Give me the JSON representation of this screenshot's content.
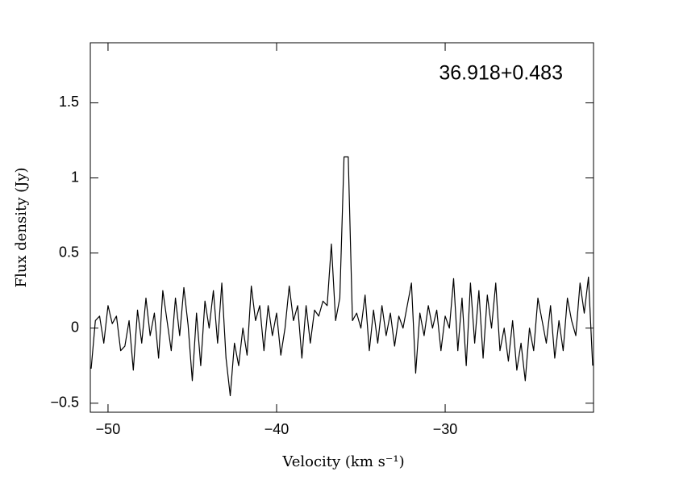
{
  "chart_data": {
    "type": "line",
    "annotation": "36.918+0.483",
    "x_label": "Velocity (km s⁻¹)",
    "y_label": "Flux density (Jy)",
    "xlim": [
      -51.05,
      -21.2
    ],
    "ylim": [
      -0.56,
      1.9
    ],
    "xticks": [
      {
        "value": -50,
        "label": "−50"
      },
      {
        "value": -40,
        "label": "−40"
      },
      {
        "value": -30,
        "label": "−30"
      }
    ],
    "yticks": [
      {
        "value": -0.5,
        "label": "−0.5"
      },
      0,
      0.5,
      1,
      1.5
    ],
    "x": [
      -51.0,
      -50.75,
      -50.5,
      -50.25,
      -50.0,
      -49.75,
      -49.5,
      -49.25,
      -49.0,
      -48.75,
      -48.5,
      -48.25,
      -48.0,
      -47.75,
      -47.5,
      -47.25,
      -47.0,
      -46.75,
      -46.5,
      -46.25,
      -46.0,
      -45.75,
      -45.5,
      -45.25,
      -45.0,
      -44.75,
      -44.5,
      -44.25,
      -44.0,
      -43.75,
      -43.5,
      -43.25,
      -43.0,
      -42.75,
      -42.5,
      -42.25,
      -42.0,
      -41.75,
      -41.5,
      -41.25,
      -41.0,
      -40.75,
      -40.5,
      -40.25,
      -40.0,
      -39.75,
      -39.5,
      -39.25,
      -39.0,
      -38.75,
      -38.5,
      -38.25,
      -38.0,
      -37.75,
      -37.5,
      -37.25,
      -37.0,
      -36.75,
      -36.5,
      -36.25,
      -36.0,
      -35.75,
      -35.5,
      -35.25,
      -35.0,
      -34.75,
      -34.5,
      -34.25,
      -34.0,
      -33.75,
      -33.5,
      -33.25,
      -33.0,
      -32.75,
      -32.5,
      -32.25,
      -32.0,
      -31.75,
      -31.5,
      -31.25,
      -31.0,
      -30.75,
      -30.5,
      -30.25,
      -30.0,
      -29.75,
      -29.5,
      -29.25,
      -29.0,
      -28.75,
      -28.5,
      -28.25,
      -28.0,
      -27.75,
      -27.5,
      -27.25,
      -27.0,
      -26.75,
      -26.5,
      -26.25,
      -26.0,
      -25.75,
      -25.5,
      -25.25,
      -25.0,
      -24.75,
      -24.5,
      -24.25,
      -24.0,
      -23.75,
      -23.5,
      -23.25,
      -23.0,
      -22.75,
      -22.5,
      -22.25,
      -22.0,
      -21.75,
      -21.5,
      -21.25
    ],
    "series": [
      {
        "color": "#000000",
        "values": [
          -0.27,
          0.05,
          0.08,
          -0.1,
          0.15,
          0.03,
          0.08,
          -0.15,
          -0.12,
          0.05,
          -0.28,
          0.12,
          -0.1,
          0.2,
          -0.05,
          0.1,
          -0.2,
          0.25,
          0.05,
          -0.15,
          0.2,
          -0.05,
          0.27,
          0.02,
          -0.35,
          0.1,
          -0.25,
          0.18,
          0.0,
          0.25,
          -0.1,
          0.3,
          -0.2,
          -0.45,
          -0.1,
          -0.25,
          0.0,
          -0.18,
          0.28,
          0.05,
          0.15,
          -0.15,
          0.15,
          -0.05,
          0.1,
          -0.18,
          0.0,
          0.28,
          0.05,
          0.15,
          -0.2,
          0.15,
          -0.1,
          0.12,
          0.08,
          0.18,
          0.15,
          0.56,
          0.05,
          0.2,
          1.14,
          1.14,
          0.05,
          0.1,
          0.0,
          0.22,
          -0.15,
          0.12,
          -0.1,
          0.15,
          -0.05,
          0.1,
          -0.12,
          0.08,
          0.0,
          0.15,
          0.3,
          -0.3,
          0.1,
          -0.05,
          0.15,
          0.0,
          0.12,
          -0.15,
          0.08,
          0.0,
          0.33,
          -0.15,
          0.2,
          -0.25,
          0.3,
          -0.1,
          0.25,
          -0.2,
          0.22,
          0.0,
          0.3,
          -0.15,
          0.0,
          -0.22,
          0.05,
          -0.28,
          -0.1,
          -0.35,
          0.0,
          -0.15,
          0.2,
          0.05,
          -0.1,
          0.15,
          -0.2,
          0.05,
          -0.15,
          0.2,
          0.05,
          -0.05,
          0.3,
          0.1,
          0.34,
          -0.25
        ]
      }
    ]
  }
}
